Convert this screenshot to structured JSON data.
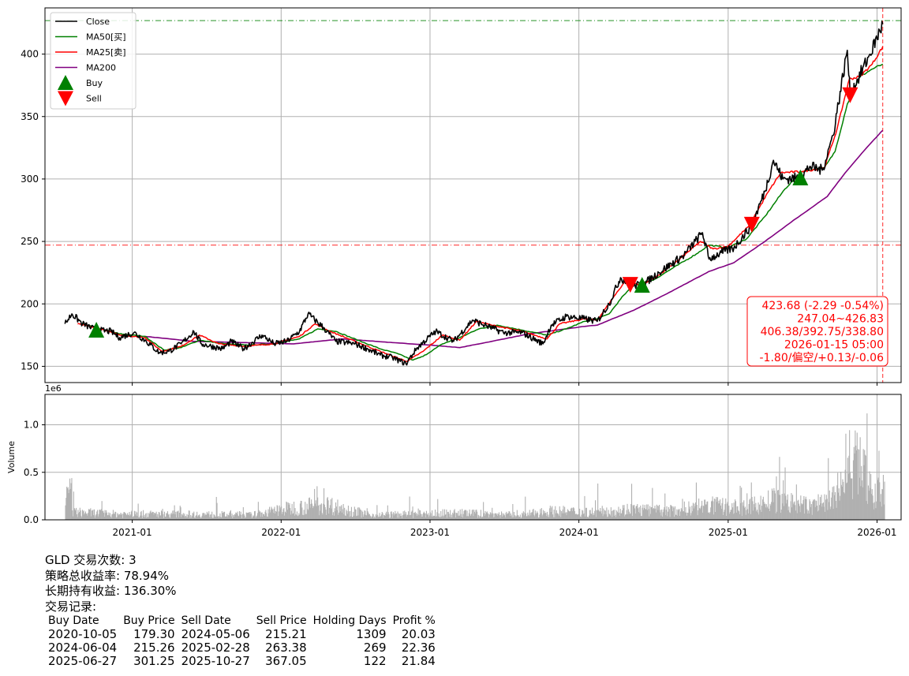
{
  "chart_data": [
    {
      "type": "line",
      "panel": "price",
      "ylim": [
        137,
        437
      ],
      "y_ticks": [
        150,
        200,
        250,
        300,
        350,
        400
      ],
      "x_range": [
        "2020-06-01",
        "2026-03-01"
      ],
      "x_ticks": [
        "2021-01",
        "2022-01",
        "2023-01",
        "2024-01",
        "2025-01",
        "2026-01"
      ],
      "grid": true,
      "legend_position": "top-left",
      "legend": [
        "Close",
        "MA50[买]",
        "MA25[卖]",
        "MA200",
        "Buy",
        "Sell"
      ],
      "colors": {
        "close": "#000000",
        "ma50": "#008000",
        "ma25": "#ff0000",
        "ma200": "#800080",
        "buy": "#008000",
        "sell": "#ff0000"
      },
      "series": [
        {
          "name": "Close",
          "points": [
            [
              "2020-07-20",
              184
            ],
            [
              "2020-08-06",
              192
            ],
            [
              "2020-09-01",
              184
            ],
            [
              "2020-10-05",
              179
            ],
            [
              "2020-11-10",
              178
            ],
            [
              "2020-12-01",
              173
            ],
            [
              "2021-01-05",
              177
            ],
            [
              "2021-02-01",
              171
            ],
            [
              "2021-03-08",
              161
            ],
            [
              "2021-04-01",
              162
            ],
            [
              "2021-05-01",
              168
            ],
            [
              "2021-06-01",
              178
            ],
            [
              "2021-06-20",
              168
            ],
            [
              "2021-08-10",
              164
            ],
            [
              "2021-09-01",
              170
            ],
            [
              "2021-10-01",
              164
            ],
            [
              "2021-11-15",
              175
            ],
            [
              "2021-12-15",
              168
            ],
            [
              "2022-01-15",
              170
            ],
            [
              "2022-02-15",
              178
            ],
            [
              "2022-03-08",
              192
            ],
            [
              "2022-04-15",
              181
            ],
            [
              "2022-05-15",
              170
            ],
            [
              "2022-07-01",
              168
            ],
            [
              "2022-08-01",
              164
            ],
            [
              "2022-09-01",
              159
            ],
            [
              "2022-10-01",
              157
            ],
            [
              "2022-11-03",
              152
            ],
            [
              "2022-12-01",
              165
            ],
            [
              "2023-01-15",
              178
            ],
            [
              "2023-02-28",
              170
            ],
            [
              "2023-04-15",
              187
            ],
            [
              "2023-05-15",
              183
            ],
            [
              "2023-06-30",
              177
            ],
            [
              "2023-08-15",
              177
            ],
            [
              "2023-10-05",
              168
            ],
            [
              "2023-10-25",
              183
            ],
            [
              "2023-12-01",
              190
            ],
            [
              "2024-01-15",
              188
            ],
            [
              "2024-02-15",
              186
            ],
            [
              "2024-03-15",
              200
            ],
            [
              "2024-04-12",
              221
            ],
            [
              "2024-05-06",
              215
            ],
            [
              "2024-06-04",
              215
            ],
            [
              "2024-07-15",
              225
            ],
            [
              "2024-08-15",
              232
            ],
            [
              "2024-09-15",
              239
            ],
            [
              "2024-10-30",
              257
            ],
            [
              "2024-11-15",
              236
            ],
            [
              "2024-12-15",
              241
            ],
            [
              "2025-01-15",
              245
            ],
            [
              "2025-02-28",
              263
            ],
            [
              "2025-04-01",
              290
            ],
            [
              "2025-04-22",
              315
            ],
            [
              "2025-05-15",
              300
            ],
            [
              "2025-06-27",
              301
            ],
            [
              "2025-07-20",
              310
            ],
            [
              "2025-08-20",
              307
            ],
            [
              "2025-09-15",
              335
            ],
            [
              "2025-10-20",
              403
            ],
            [
              "2025-10-27",
              367
            ],
            [
              "2025-11-15",
              380
            ],
            [
              "2025-12-15",
              400
            ],
            [
              "2026-01-15",
              424
            ]
          ]
        },
        {
          "name": "MA50[买]",
          "points": [
            [
              "2020-09-01",
              184
            ],
            [
              "2020-10-15",
              180
            ],
            [
              "2020-12-01",
              176
            ],
            [
              "2021-02-01",
              174
            ],
            [
              "2021-03-20",
              163
            ],
            [
              "2021-05-01",
              165
            ],
            [
              "2021-06-15",
              171
            ],
            [
              "2021-08-15",
              168
            ],
            [
              "2021-10-15",
              167
            ],
            [
              "2021-12-15",
              168
            ],
            [
              "2022-02-15",
              172
            ],
            [
              "2022-04-01",
              180
            ],
            [
              "2022-05-15",
              178
            ],
            [
              "2022-07-15",
              170
            ],
            [
              "2022-09-01",
              164
            ],
            [
              "2022-10-15",
              160
            ],
            [
              "2022-11-20",
              155
            ],
            [
              "2022-12-15",
              158
            ],
            [
              "2023-02-01",
              168
            ],
            [
              "2023-03-15",
              173
            ],
            [
              "2023-05-01",
              180
            ],
            [
              "2023-06-15",
              183
            ],
            [
              "2023-08-15",
              179
            ],
            [
              "2023-10-15",
              175
            ],
            [
              "2023-12-01",
              180
            ],
            [
              "2024-01-15",
              186
            ],
            [
              "2024-02-15",
              188
            ],
            [
              "2024-03-15",
              192
            ],
            [
              "2024-04-20",
              207
            ],
            [
              "2024-05-15",
              215
            ],
            [
              "2024-07-01",
              219
            ],
            [
              "2024-08-15",
              228
            ],
            [
              "2024-10-15",
              240
            ],
            [
              "2024-11-15",
              247
            ],
            [
              "2024-12-31",
              245
            ],
            [
              "2025-02-15",
              252
            ],
            [
              "2025-04-01",
              270
            ],
            [
              "2025-05-20",
              292
            ],
            [
              "2025-07-01",
              306
            ],
            [
              "2025-08-25",
              309
            ],
            [
              "2025-09-20",
              322
            ],
            [
              "2025-10-20",
              360
            ],
            [
              "2025-11-20",
              382
            ],
            [
              "2025-12-20",
              388
            ],
            [
              "2026-01-15",
              392
            ]
          ]
        },
        {
          "name": "MA25[卖]",
          "points": [
            [
              "2020-08-20",
              184
            ],
            [
              "2020-10-15",
              180
            ],
            [
              "2020-12-01",
              175
            ],
            [
              "2021-02-01",
              173
            ],
            [
              "2021-03-15",
              162
            ],
            [
              "2021-05-01",
              166
            ],
            [
              "2021-06-15",
              175
            ],
            [
              "2021-08-01",
              168
            ],
            [
              "2021-10-01",
              166
            ],
            [
              "2021-12-15",
              168
            ],
            [
              "2022-02-15",
              174
            ],
            [
              "2022-03-25",
              184
            ],
            [
              "2022-05-01",
              178
            ],
            [
              "2022-07-01",
              170
            ],
            [
              "2022-09-01",
              162
            ],
            [
              "2022-11-05",
              154
            ],
            [
              "2022-12-15",
              162
            ],
            [
              "2023-02-01",
              175
            ],
            [
              "2023-03-15",
              171
            ],
            [
              "2023-04-25",
              186
            ],
            [
              "2023-06-01",
              183
            ],
            [
              "2023-08-15",
              178
            ],
            [
              "2023-10-15",
              172
            ],
            [
              "2023-11-15",
              184
            ],
            [
              "2024-01-15",
              188
            ],
            [
              "2024-02-15",
              187
            ],
            [
              "2024-03-25",
              205
            ],
            [
              "2024-04-25",
              219
            ],
            [
              "2024-06-01",
              215
            ],
            [
              "2024-07-15",
              223
            ],
            [
              "2024-09-01",
              235
            ],
            [
              "2024-10-25",
              250
            ],
            [
              "2024-11-25",
              244
            ],
            [
              "2024-12-31",
              246
            ],
            [
              "2025-02-20",
              262
            ],
            [
              "2025-04-10",
              290
            ],
            [
              "2025-05-10",
              305
            ],
            [
              "2025-07-01",
              306
            ],
            [
              "2025-08-25",
              309
            ],
            [
              "2025-09-25",
              340
            ],
            [
              "2025-10-25",
              380
            ],
            [
              "2025-11-20",
              382
            ],
            [
              "2025-12-20",
              392
            ],
            [
              "2026-01-15",
              406
            ]
          ]
        },
        {
          "name": "MA200",
          "points": [
            [
              "2021-02-01",
              174
            ],
            [
              "2021-06-01",
              170
            ],
            [
              "2021-10-01",
              169
            ],
            [
              "2022-02-01",
              168
            ],
            [
              "2022-06-01",
              172
            ],
            [
              "2022-10-01",
              169
            ],
            [
              "2023-01-01",
              167
            ],
            [
              "2023-03-15",
              165
            ],
            [
              "2023-06-01",
              170
            ],
            [
              "2023-09-01",
              176
            ],
            [
              "2023-12-01",
              180
            ],
            [
              "2024-01-15",
              182
            ],
            [
              "2024-02-15",
              183
            ],
            [
              "2024-05-15",
              195
            ],
            [
              "2024-08-15",
              210
            ],
            [
              "2024-11-15",
              226
            ],
            [
              "2025-01-15",
              233
            ],
            [
              "2025-04-01",
              250
            ],
            [
              "2025-06-15",
              268
            ],
            [
              "2025-09-01",
              286
            ],
            [
              "2025-10-15",
              305
            ],
            [
              "2025-12-01",
              323
            ],
            [
              "2026-01-15",
              339
            ]
          ]
        }
      ],
      "markers": [
        {
          "kind": "Buy",
          "date": "2020-10-05",
          "price": 179.3
        },
        {
          "kind": "Buy",
          "date": "2024-06-04",
          "price": 215.26
        },
        {
          "kind": "Buy",
          "date": "2025-06-27",
          "price": 301.25
        },
        {
          "kind": "Sell",
          "date": "2024-05-06",
          "price": 215.21
        },
        {
          "kind": "Sell",
          "date": "2025-02-28",
          "price": 263.38
        },
        {
          "kind": "Sell",
          "date": "2025-10-27",
          "price": 367.05
        }
      ],
      "reference_lines": [
        {
          "orientation": "horizontal",
          "value": 426.83,
          "color": "#008000",
          "style": "dash-dot"
        },
        {
          "orientation": "horizontal",
          "value": 247.04,
          "color": "#ff0000",
          "style": "dash-dot"
        },
        {
          "orientation": "vertical",
          "date": "2026-01-15",
          "color": "#ff0000",
          "style": "dashed"
        }
      ],
      "annotation": [
        "423.68 (-2.29 -0.54%)",
        "247.04~426.83",
        "406.38/392.75/338.80",
        "2026-01-15 05:00",
        "-1.80/偏空/+0.13/-0.06"
      ]
    },
    {
      "type": "bar",
      "panel": "volume",
      "ylabel": "Volume",
      "scale_label": "1e6",
      "ylim": [
        0,
        1.32
      ],
      "y_ticks": [
        "0.0",
        "0.5",
        "1.0"
      ],
      "grid": true,
      "color": "#b0b0b0",
      "approximate_volume_profile": [
        [
          2020.6,
          0.08
        ],
        [
          2020.9,
          0.06
        ],
        [
          2021.3,
          0.06
        ],
        [
          2021.8,
          0.05
        ],
        [
          2022.05,
          0.12
        ],
        [
          2022.3,
          0.16
        ],
        [
          2022.6,
          0.05
        ],
        [
          2022.9,
          0.06
        ],
        [
          2023.2,
          0.07
        ],
        [
          2023.6,
          0.05
        ],
        [
          2023.8,
          0.09
        ],
        [
          2024.1,
          0.08
        ],
        [
          2024.35,
          0.11
        ],
        [
          2024.6,
          0.09
        ],
        [
          2024.85,
          0.15
        ],
        [
          2025.1,
          0.12
        ],
        [
          2025.3,
          0.2
        ],
        [
          2025.55,
          0.14
        ],
        [
          2025.7,
          0.22
        ],
        [
          2025.8,
          0.45
        ],
        [
          2025.88,
          0.6
        ],
        [
          2025.95,
          0.32
        ],
        [
          2026.05,
          0.26
        ]
      ]
    }
  ],
  "summary": {
    "title": "GLD 交易次数: 3",
    "strategy_return": "策略总收益率: 78.94%",
    "buy_hold_return": "长期持有收益: 136.30%",
    "records_label": "交易记录:"
  },
  "trades": {
    "headers": [
      "Buy Date",
      "Buy Price",
      "Sell Date",
      "Sell Price",
      "Holding Days",
      "Profit %"
    ],
    "rows": [
      [
        "2020-10-05",
        "179.30",
        "2024-05-06",
        "215.21",
        "1309",
        "20.03"
      ],
      [
        "2024-06-04",
        "215.26",
        "2025-02-28",
        "263.38",
        "269",
        "22.36"
      ],
      [
        "2025-06-27",
        "301.25",
        "2025-10-27",
        "367.05",
        "122",
        "21.84"
      ]
    ]
  }
}
